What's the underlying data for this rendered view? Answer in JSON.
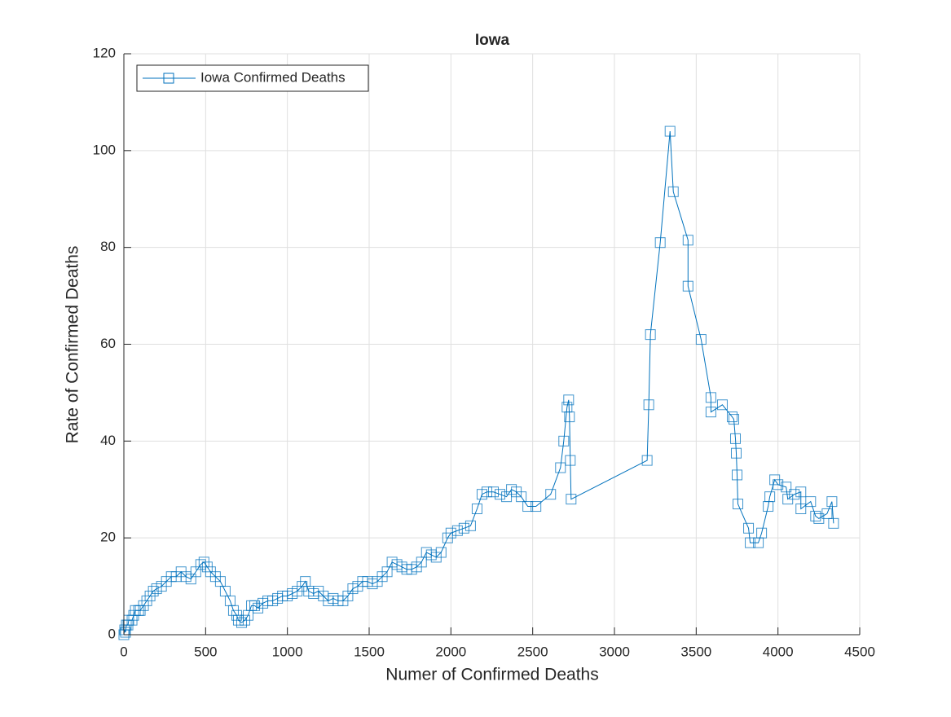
{
  "chart_data": {
    "type": "line",
    "title": "Iowa",
    "x_label": "Numer of Confirmed Deaths",
    "y_label": "Rate of Confirmed Deaths",
    "x": [
      0,
      5,
      10,
      15,
      25,
      30,
      50,
      60,
      70,
      90,
      100,
      120,
      140,
      160,
      180,
      200,
      230,
      260,
      290,
      320,
      350,
      380,
      410,
      440,
      470,
      490,
      510,
      530,
      560,
      590,
      620,
      650,
      670,
      690,
      700,
      720,
      740,
      760,
      780,
      800,
      820,
      850,
      880,
      910,
      940,
      970,
      1000,
      1030,
      1060,
      1090,
      1110,
      1130,
      1160,
      1190,
      1220,
      1250,
      1280,
      1310,
      1340,
      1370,
      1400,
      1430,
      1460,
      1490,
      1520,
      1550,
      1580,
      1610,
      1640,
      1670,
      1700,
      1730,
      1760,
      1790,
      1820,
      1850,
      1880,
      1910,
      1940,
      1980,
      2000,
      2040,
      2080,
      2120,
      2160,
      2190,
      2220,
      2260,
      2300,
      2340,
      2370,
      2400,
      2430,
      2470,
      2520,
      2610,
      2670,
      2690,
      2710,
      2720,
      2725,
      2730,
      2735,
      3200,
      3210,
      3220,
      3280,
      3340,
      3360,
      3450,
      3450,
      3530,
      3590,
      3590,
      3660,
      3720,
      3730,
      3740,
      3745,
      3750,
      3755,
      3820,
      3830,
      3880,
      3900,
      3940,
      3950,
      3980,
      4000,
      4050,
      4060,
      4100,
      4140,
      4140,
      4200,
      4230,
      4250,
      4300,
      4330,
      4340
    ],
    "series": [
      {
        "name": "Iowa Confirmed Deaths",
        "color": "#0072bd",
        "values": [
          0,
          1,
          0.5,
          2,
          2,
          3,
          3,
          4,
          5,
          5,
          5,
          6,
          7,
          8,
          9,
          9.5,
          10,
          11,
          12,
          12,
          13,
          12,
          11.5,
          13,
          14.5,
          15,
          14,
          13,
          12,
          11,
          9,
          7,
          5,
          4,
          3,
          2.5,
          3,
          4,
          6,
          6,
          5.5,
          6.5,
          7,
          7,
          7.5,
          8,
          8,
          8.5,
          9,
          10,
          11,
          9,
          8.5,
          9,
          8,
          7,
          7.5,
          7,
          7,
          8,
          9.5,
          10,
          11,
          11,
          10.5,
          11,
          12,
          13,
          15,
          14.5,
          14,
          13.5,
          13.5,
          14,
          15,
          17,
          16.5,
          16,
          17,
          20,
          21,
          21.5,
          22,
          22.5,
          26,
          29,
          29.5,
          29.5,
          29,
          28.5,
          30,
          29.5,
          28.5,
          26.5,
          26.5,
          29,
          34.5,
          40,
          47,
          48.5,
          45,
          36,
          28,
          36,
          47.5,
          62,
          81,
          104,
          91.5,
          81.5,
          72,
          61,
          49,
          46,
          47.5,
          45,
          44.5,
          40.5,
          37.5,
          33,
          27,
          22,
          19,
          19,
          21,
          26.5,
          28.5,
          32,
          31,
          30.5,
          28,
          29,
          29.5,
          26,
          27.5,
          24.5,
          24,
          25,
          27.5,
          23
        ]
      }
    ],
    "xlim": [
      0,
      4500
    ],
    "xticks": [
      0,
      500,
      1000,
      1500,
      2000,
      2500,
      3000,
      3500,
      4000,
      4500
    ],
    "ylim": [
      0,
      120
    ],
    "yticks": [
      0,
      20,
      40,
      60,
      80,
      100,
      120
    ],
    "grid": true,
    "legend": "northwest"
  }
}
